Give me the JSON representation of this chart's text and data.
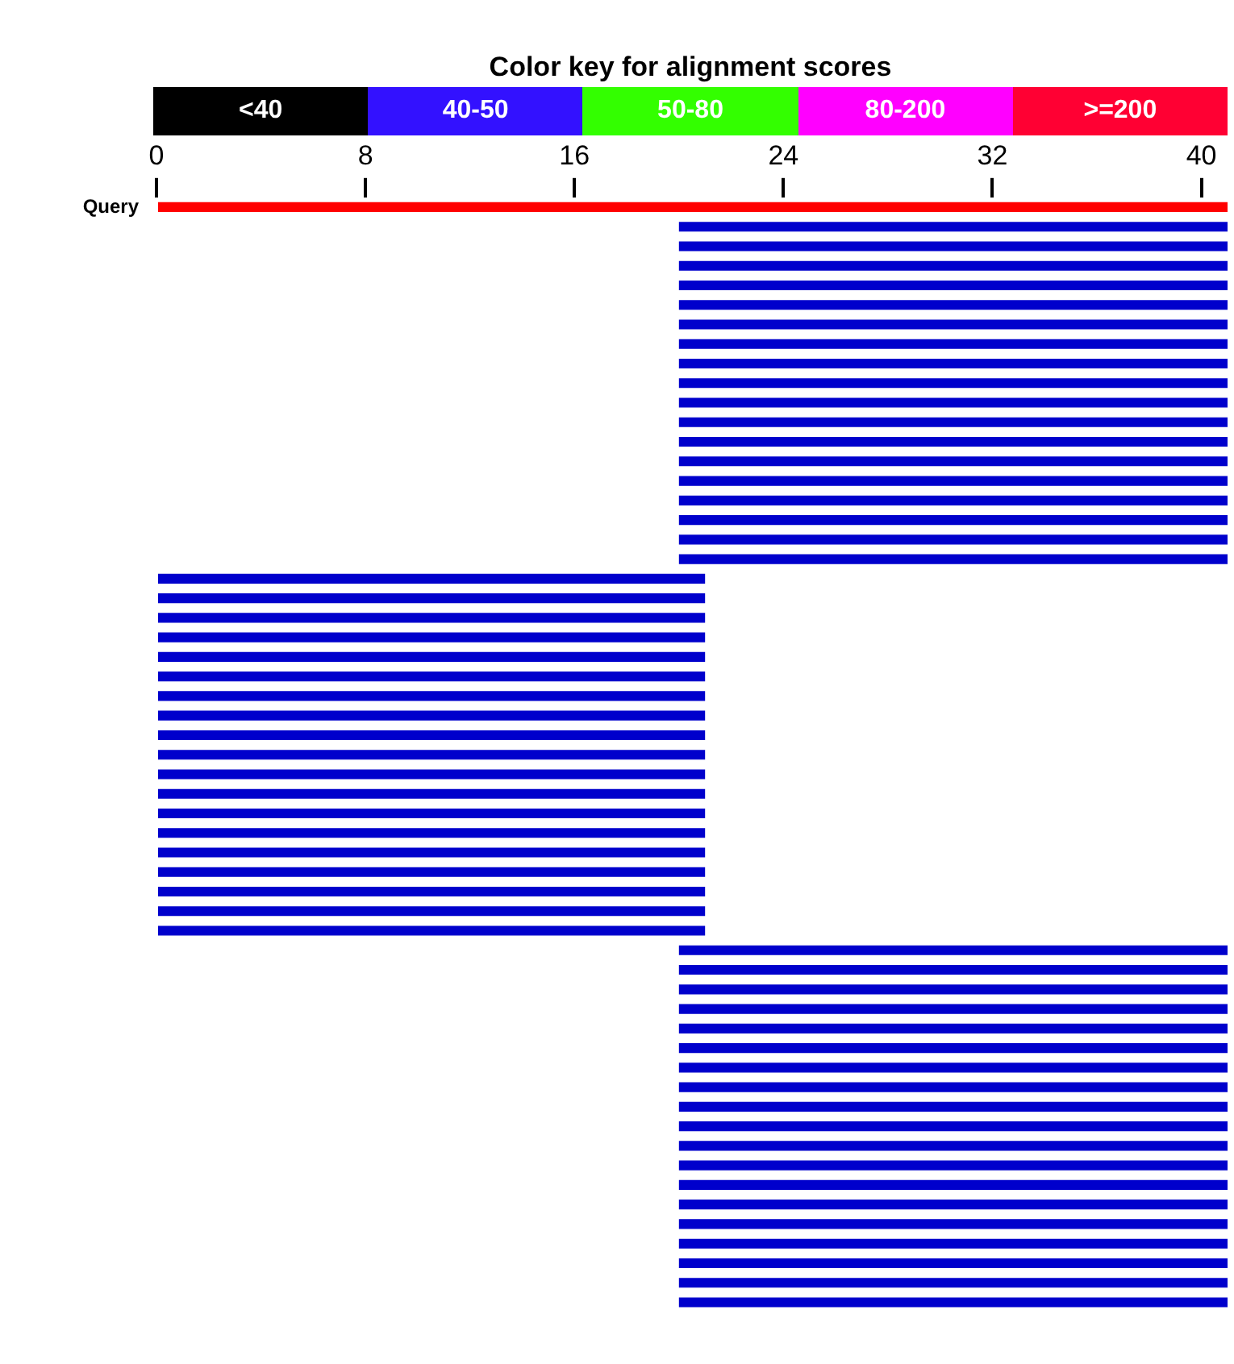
{
  "chart_data": [
    {
      "type": "other",
      "title": "Color key for alignment scores",
      "annotations": [
        "<40",
        "40-50",
        "50-80",
        "80-200",
        ">=200"
      ],
      "colors": [
        "#000000",
        "#3311ff",
        "#33ff00",
        "#ff00ff",
        "#ff0033"
      ]
    },
    {
      "type": "bar",
      "orientation": "horizontal",
      "categories": [
        "Query",
        null,
        null,
        null,
        null,
        null,
        null,
        null,
        null,
        null,
        null,
        null,
        null,
        null,
        null,
        null,
        null,
        null,
        null,
        null,
        null,
        null,
        null,
        null,
        null,
        null,
        null,
        null,
        null,
        null,
        null,
        null,
        null,
        null,
        null,
        null,
        null,
        null,
        null,
        null,
        null,
        null,
        null,
        null,
        null,
        null,
        null,
        null,
        null,
        null,
        null,
        null,
        null,
        null,
        null,
        null,
        null
      ],
      "base": [
        0,
        20,
        20,
        20,
        20,
        20,
        20,
        20,
        20,
        20,
        20,
        20,
        20,
        20,
        20,
        20,
        20,
        20,
        20,
        0,
        0,
        0,
        0,
        0,
        0,
        0,
        0,
        0,
        0,
        0,
        0,
        0,
        0,
        0,
        0,
        0,
        0,
        0,
        20,
        20,
        20,
        20,
        20,
        20,
        20,
        20,
        20,
        20,
        20,
        20,
        20,
        20,
        20,
        20,
        20,
        20,
        20
      ],
      "values": [
        41,
        21,
        21,
        21,
        21,
        21,
        21,
        21,
        21,
        21,
        21,
        21,
        21,
        21,
        21,
        21,
        21,
        21,
        21,
        21,
        21,
        21,
        21,
        21,
        21,
        21,
        21,
        21,
        21,
        21,
        21,
        21,
        21,
        21,
        21,
        21,
        21,
        21,
        21,
        21,
        21,
        21,
        21,
        21,
        21,
        21,
        21,
        21,
        21,
        21,
        21,
        21,
        21,
        21,
        21,
        21,
        21
      ],
      "colors": [
        "#ff0000",
        "#0000cc",
        "#0000cc",
        "#0000cc",
        "#0000cc",
        "#0000cc",
        "#0000cc",
        "#0000cc",
        "#0000cc",
        "#0000cc",
        "#0000cc",
        "#0000cc",
        "#0000cc",
        "#0000cc",
        "#0000cc",
        "#0000cc",
        "#0000cc",
        "#0000cc",
        "#0000cc",
        "#0000cc",
        "#0000cc",
        "#0000cc",
        "#0000cc",
        "#0000cc",
        "#0000cc",
        "#0000cc",
        "#0000cc",
        "#0000cc",
        "#0000cc",
        "#0000cc",
        "#0000cc",
        "#0000cc",
        "#0000cc",
        "#0000cc",
        "#0000cc",
        "#0000cc",
        "#0000cc",
        "#0000cc",
        "#0000cc",
        "#0000cc",
        "#0000cc",
        "#0000cc",
        "#0000cc",
        "#0000cc",
        "#0000cc",
        "#0000cc",
        "#0000cc",
        "#0000cc",
        "#0000cc",
        "#0000cc",
        "#0000cc",
        "#0000cc",
        "#0000cc",
        "#0000cc",
        "#0000cc",
        "#0000cc",
        "#0000cc"
      ],
      "xlim": [
        0,
        41
      ],
      "xticks": [
        0,
        8,
        16,
        24,
        32,
        40
      ]
    }
  ]
}
